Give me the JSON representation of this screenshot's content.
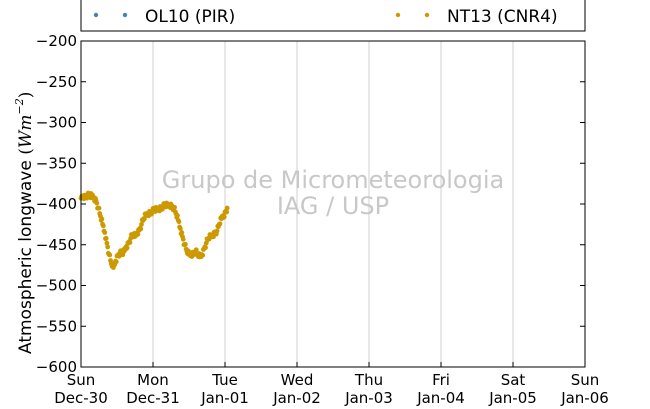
{
  "chart_data": {
    "type": "scatter",
    "ylabel": "Atmospheric longwave (Wm⁻²)",
    "ylabel_text": "Atmospheric longwave",
    "ylabel_unit": "Wm",
    "ylabel_exp": "−2",
    "ylim": [
      -600,
      -200
    ],
    "yticks": [
      -600,
      -550,
      -500,
      -450,
      -400,
      -350,
      -300,
      -250,
      -200
    ],
    "ytick_labels": [
      "−600",
      "−550",
      "−500",
      "−450",
      "−400",
      "−350",
      "−300",
      "−250",
      "−200"
    ],
    "xlim": [
      0,
      7
    ],
    "xticks": [
      {
        "x": 0,
        "day": "Sun",
        "date": "Dec-30"
      },
      {
        "x": 1,
        "day": "Mon",
        "date": "Dec-31"
      },
      {
        "x": 2,
        "day": "Tue",
        "date": "Jan-01"
      },
      {
        "x": 3,
        "day": "Wed",
        "date": "Jan-02"
      },
      {
        "x": 4,
        "day": "Thu",
        "date": "Jan-03"
      },
      {
        "x": 5,
        "day": "Fri",
        "date": "Jan-04"
      },
      {
        "x": 6,
        "day": "Sat",
        "date": "Jan-05"
      },
      {
        "x": 7,
        "day": "Sun",
        "date": "Jan-06"
      }
    ],
    "grid": "vertical",
    "legend_position": "top",
    "series": [
      {
        "name": "OL10 (PIR)",
        "color": "#4682b4",
        "points": []
      },
      {
        "name": "NT13 (CNR4)",
        "color": "#cc9900",
        "points": [
          [
            0.0,
            -393
          ],
          [
            0.03,
            -390
          ],
          [
            0.06,
            -391
          ],
          [
            0.09,
            -389
          ],
          [
            0.12,
            -391
          ],
          [
            0.15,
            -390
          ],
          [
            0.18,
            -392
          ],
          [
            0.21,
            -396
          ],
          [
            0.24,
            -405
          ],
          [
            0.27,
            -415
          ],
          [
            0.3,
            -425
          ],
          [
            0.33,
            -435
          ],
          [
            0.36,
            -448
          ],
          [
            0.39,
            -462
          ],
          [
            0.42,
            -473
          ],
          [
            0.45,
            -478
          ],
          [
            0.48,
            -470
          ],
          [
            0.51,
            -463
          ],
          [
            0.54,
            -460
          ],
          [
            0.57,
            -462
          ],
          [
            0.6,
            -458
          ],
          [
            0.63,
            -452
          ],
          [
            0.66,
            -448
          ],
          [
            0.69,
            -442
          ],
          [
            0.72,
            -438
          ],
          [
            0.75,
            -440
          ],
          [
            0.78,
            -435
          ],
          [
            0.81,
            -432
          ],
          [
            0.84,
            -425
          ],
          [
            0.87,
            -418
          ],
          [
            0.9,
            -414
          ],
          [
            0.93,
            -412
          ],
          [
            0.96,
            -410
          ],
          [
            0.99,
            -409
          ],
          [
            1.02,
            -408
          ],
          [
            1.05,
            -407
          ],
          [
            1.08,
            -406
          ],
          [
            1.11,
            -404
          ],
          [
            1.14,
            -403
          ],
          [
            1.17,
            -402
          ],
          [
            1.2,
            -402
          ],
          [
            1.23,
            -401
          ],
          [
            1.26,
            -402
          ],
          [
            1.29,
            -405
          ],
          [
            1.32,
            -412
          ],
          [
            1.35,
            -420
          ],
          [
            1.38,
            -430
          ],
          [
            1.41,
            -440
          ],
          [
            1.44,
            -450
          ],
          [
            1.47,
            -458
          ],
          [
            1.5,
            -462
          ],
          [
            1.53,
            -462
          ],
          [
            1.56,
            -460
          ],
          [
            1.59,
            -458
          ],
          [
            1.62,
            -462
          ],
          [
            1.65,
            -465
          ],
          [
            1.68,
            -462
          ],
          [
            1.71,
            -455
          ],
          [
            1.74,
            -448
          ],
          [
            1.77,
            -442
          ],
          [
            1.8,
            -440
          ],
          [
            1.83,
            -438
          ],
          [
            1.86,
            -435
          ],
          [
            1.89,
            -433
          ],
          [
            1.92,
            -425
          ],
          [
            1.95,
            -418
          ],
          [
            1.98,
            -414
          ],
          [
            2.01,
            -410
          ],
          [
            2.03,
            -405
          ]
        ]
      }
    ]
  },
  "watermark": {
    "line1": "Grupo de Micrometeorologia",
    "line2": "IAG / USP"
  }
}
